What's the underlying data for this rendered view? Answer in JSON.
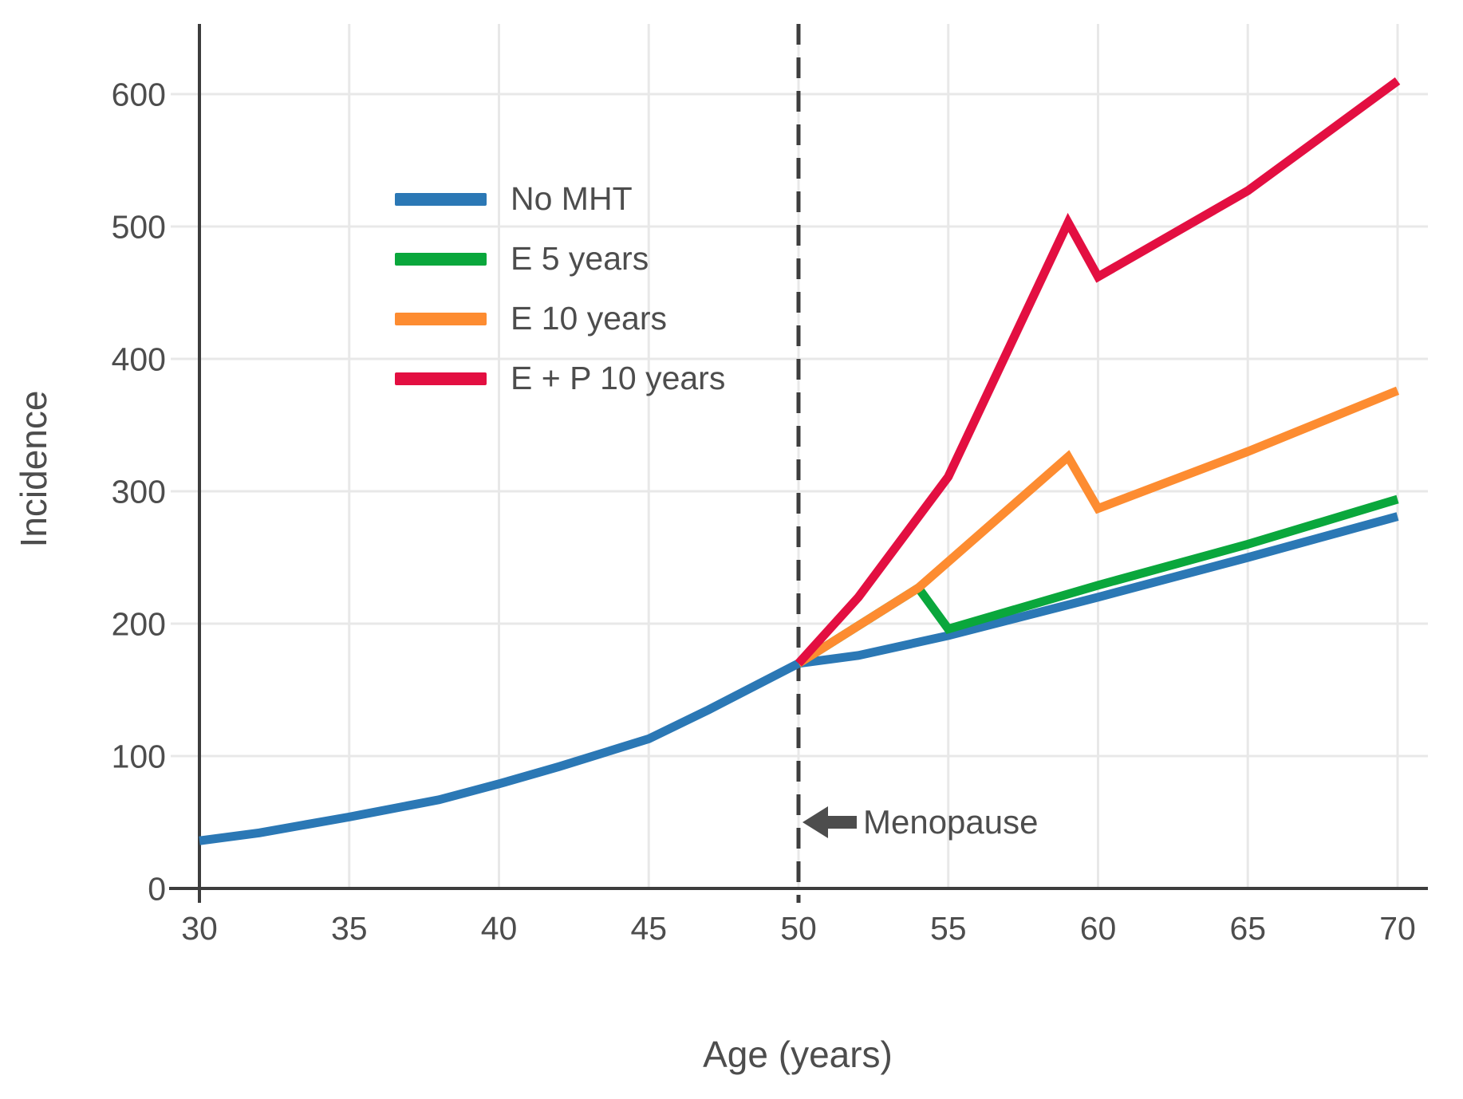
{
  "chart_data": {
    "type": "line",
    "title": "",
    "xlabel": "Age (years)",
    "ylabel": "Incidence",
    "x_range": [
      30,
      70
    ],
    "y_range": [
      0,
      653
    ],
    "x_ticks": [
      30,
      35,
      40,
      45,
      50,
      55,
      60,
      65,
      70
    ],
    "y_ticks": [
      0,
      100,
      200,
      300,
      400,
      500,
      600
    ],
    "grid": true,
    "legend_position": "upper-left-inside",
    "series": [
      {
        "name": "No MHT",
        "color": "#2b78b5",
        "points": [
          [
            30,
            36
          ],
          [
            32,
            42
          ],
          [
            35,
            54
          ],
          [
            38,
            67
          ],
          [
            40,
            79
          ],
          [
            42,
            92
          ],
          [
            45,
            113
          ],
          [
            47,
            135
          ],
          [
            50,
            170
          ],
          [
            52,
            176
          ],
          [
            55,
            191
          ],
          [
            60,
            220
          ],
          [
            65,
            250
          ],
          [
            70,
            281
          ]
        ]
      },
      {
        "name": "E 5 years",
        "color": "#0aa73c",
        "points": [
          [
            50,
            170
          ],
          [
            54,
            227
          ],
          [
            55,
            196
          ],
          [
            60,
            229
          ],
          [
            65,
            260
          ],
          [
            70,
            294
          ]
        ]
      },
      {
        "name": "E 10 years",
        "color": "#fd8c31",
        "points": [
          [
            50,
            170
          ],
          [
            54,
            227
          ],
          [
            59,
            326
          ],
          [
            60,
            287
          ],
          [
            65,
            330
          ],
          [
            70,
            376
          ]
        ]
      },
      {
        "name": "E + P 10 years",
        "color": "#e30f41",
        "points": [
          [
            50,
            170
          ],
          [
            52,
            220
          ],
          [
            55,
            311
          ],
          [
            59,
            503
          ],
          [
            60,
            462
          ],
          [
            65,
            527
          ],
          [
            70,
            610
          ]
        ]
      }
    ],
    "reference_line": {
      "x": 50,
      "style": "dashed",
      "color": "#3d3d3d"
    },
    "annotation": {
      "text": "Menopause",
      "icon": "left-arrow",
      "at_x": 50
    }
  },
  "colors": {
    "grid": "#e8e8e8",
    "axis": "#3d3d3d",
    "tick_text": "#4d4d4d",
    "annotation": "#4d4d4d"
  }
}
